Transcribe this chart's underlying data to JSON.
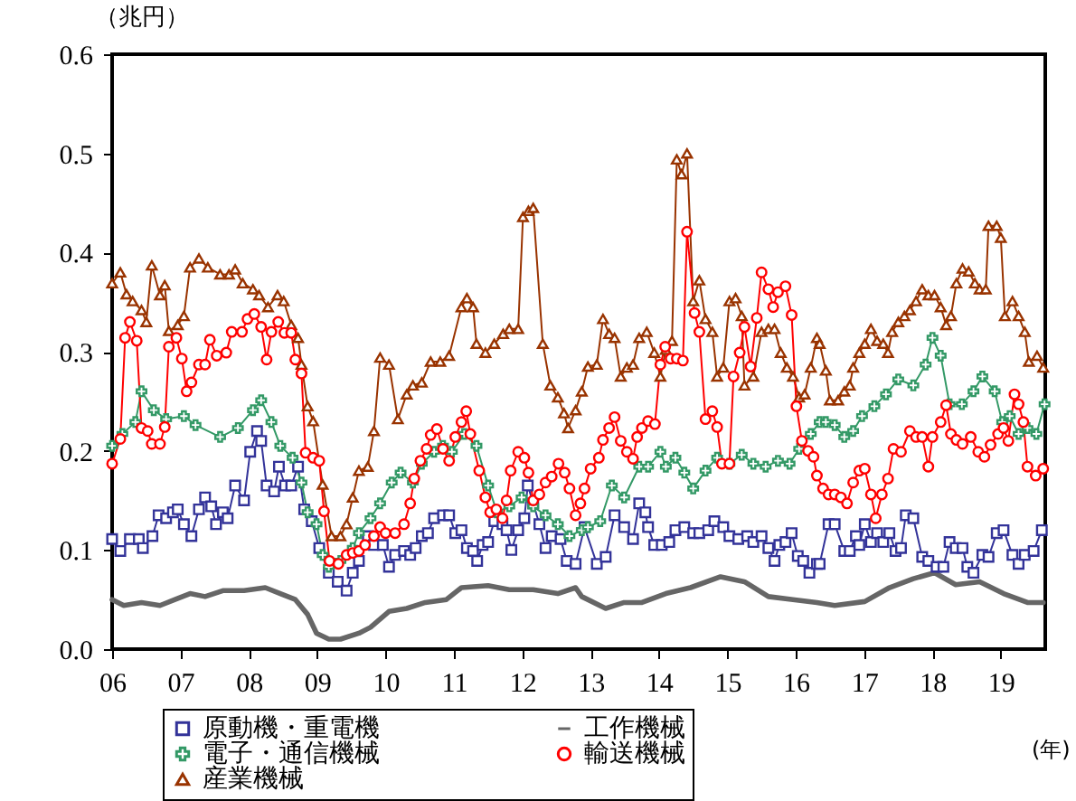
{
  "chart_data": {
    "type": "line",
    "ylabel": "（兆円）",
    "xlabel": "(年)",
    "legend": "bottom",
    "grid": false,
    "xlim": [
      2006,
      2019.65
    ],
    "xticks": [
      {
        "value": 2006,
        "label": "06"
      },
      {
        "value": 2007,
        "label": "07"
      },
      {
        "value": 2008,
        "label": "08"
      },
      {
        "value": 2009,
        "label": "09"
      },
      {
        "value": 2010,
        "label": "10"
      },
      {
        "value": 2011,
        "label": "11"
      },
      {
        "value": 2012,
        "label": "12"
      },
      {
        "value": 2013,
        "label": "13"
      },
      {
        "value": 2014,
        "label": "14"
      },
      {
        "value": 2015,
        "label": "15"
      },
      {
        "value": 2016,
        "label": "16"
      },
      {
        "value": 2017,
        "label": "17"
      },
      {
        "value": 2018,
        "label": "18"
      },
      {
        "value": 2019,
        "label": "19"
      }
    ],
    "ylim": [
      0,
      0.6
    ],
    "yticks": [
      {
        "value": 0,
        "label": "0.0"
      },
      {
        "value": 0.1,
        "label": "0.1"
      },
      {
        "value": 0.2,
        "label": "0.2"
      },
      {
        "value": 0.3,
        "label": "0.3"
      },
      {
        "value": 0.4,
        "label": "0.4"
      },
      {
        "value": 0.5,
        "label": "0.5"
      },
      {
        "value": 0.6,
        "label": "0.6"
      }
    ],
    "series": [
      {
        "name": "原動機・重電機",
        "color": "#333399",
        "marker": "square",
        "x": [
          2006.0,
          2006.12,
          2006.26,
          2006.39,
          2006.45,
          2006.59,
          2006.68,
          2006.79,
          2006.89,
          2006.96,
          2007.05,
          2007.16,
          2007.27,
          2007.36,
          2007.45,
          2007.52,
          2007.62,
          2007.69,
          2007.8,
          2007.93,
          2008.02,
          2008.12,
          2008.18,
          2008.26,
          2008.37,
          2008.44,
          2008.53,
          2008.62,
          2008.72,
          2008.81,
          2008.92,
          2009.03,
          2009.17,
          2009.3,
          2009.43,
          2009.52,
          2009.61,
          2009.74,
          2009.83,
          2009.96,
          2010.05,
          2010.14,
          2010.27,
          2010.36,
          2010.44,
          2010.53,
          2010.62,
          2010.71,
          2010.84,
          2010.93,
          2011.02,
          2011.11,
          2011.19,
          2011.28,
          2011.34,
          2011.42,
          2011.5,
          2011.59,
          2011.71,
          2011.77,
          2011.84,
          2011.94,
          2012.03,
          2012.08,
          2012.16,
          2012.25,
          2012.34,
          2012.43,
          2012.56,
          2012.65,
          2012.78,
          2012.91,
          2013.09,
          2013.22,
          2013.35,
          2013.49,
          2013.62,
          2013.71,
          2013.8,
          2013.84,
          2013.93,
          2014.04,
          2014.15,
          2014.24,
          2014.37,
          2014.5,
          2014.59,
          2014.72,
          2014.81,
          2014.94,
          2015.03,
          2015.16,
          2015.29,
          2015.38,
          2015.5,
          2015.6,
          2015.69,
          2015.76,
          2015.85,
          2015.94,
          2016.03,
          2016.11,
          2016.2,
          2016.31,
          2016.35,
          2016.48,
          2016.57,
          2016.71,
          2016.79,
          2016.88,
          2016.93,
          2017.01,
          2017.1,
          2017.19,
          2017.28,
          2017.37,
          2017.46,
          2017.54,
          2017.61,
          2017.72,
          2017.85,
          2017.94,
          2018.06,
          2018.16,
          2018.25,
          2018.34,
          2018.44,
          2018.51,
          2018.6,
          2018.73,
          2018.82,
          2018.94,
          2019.04,
          2019.17,
          2019.26,
          2019.35,
          2019.48,
          2019.6
        ],
        "values": [
          0.111,
          0.099,
          0.111,
          0.111,
          0.102,
          0.114,
          0.135,
          0.132,
          0.138,
          0.141,
          0.126,
          0.114,
          0.141,
          0.153,
          0.144,
          0.126,
          0.138,
          0.132,
          0.165,
          0.15,
          0.199,
          0.22,
          0.21,
          0.165,
          0.159,
          0.184,
          0.165,
          0.165,
          0.184,
          0.141,
          0.129,
          0.102,
          0.077,
          0.068,
          0.059,
          0.077,
          0.089,
          0.114,
          0.105,
          0.105,
          0.083,
          0.095,
          0.099,
          0.095,
          0.102,
          0.114,
          0.117,
          0.132,
          0.135,
          0.135,
          0.117,
          0.12,
          0.102,
          0.099,
          0.089,
          0.105,
          0.108,
          0.129,
          0.126,
          0.12,
          0.1,
          0.12,
          0.132,
          0.165,
          0.147,
          0.126,
          0.102,
          0.114,
          0.111,
          0.089,
          0.086,
          0.123,
          0.086,
          0.093,
          0.135,
          0.123,
          0.111,
          0.147,
          0.138,
          0.123,
          0.105,
          0.105,
          0.108,
          0.12,
          0.123,
          0.117,
          0.117,
          0.12,
          0.129,
          0.123,
          0.114,
          0.111,
          0.114,
          0.108,
          0.114,
          0.102,
          0.089,
          0.105,
          0.108,
          0.117,
          0.094,
          0.089,
          0.077,
          0.086,
          0.086,
          0.126,
          0.126,
          0.099,
          0.099,
          0.114,
          0.105,
          0.126,
          0.108,
          0.117,
          0.108,
          0.117,
          0.099,
          0.102,
          0.135,
          0.132,
          0.093,
          0.089,
          0.083,
          0.083,
          0.108,
          0.102,
          0.102,
          0.083,
          0.077,
          0.095,
          0.093,
          0.117,
          0.12,
          0.095,
          0.086,
          0.095,
          0.099,
          0.12
        ]
      },
      {
        "name": "電子・通信機械",
        "color": "#339966",
        "marker": "cross",
        "x": [
          2006.0,
          2006.15,
          2006.34,
          2006.43,
          2006.61,
          2006.79,
          2007.05,
          2007.22,
          2007.58,
          2007.84,
          2008.06,
          2008.18,
          2008.33,
          2008.46,
          2008.64,
          2008.77,
          2008.86,
          2008.99,
          2009.08,
          2009.17,
          2009.34,
          2009.52,
          2009.61,
          2009.78,
          2009.92,
          2010.09,
          2010.22,
          2010.4,
          2010.53,
          2010.71,
          2010.84,
          2010.97,
          2011.15,
          2011.33,
          2011.5,
          2011.63,
          2011.81,
          2011.99,
          2012.16,
          2012.34,
          2012.52,
          2012.69,
          2012.87,
          2012.96,
          2013.14,
          2013.31,
          2013.49,
          2013.71,
          2013.84,
          2014.02,
          2014.1,
          2014.24,
          2014.37,
          2014.5,
          2014.68,
          2014.85,
          2015.03,
          2015.21,
          2015.38,
          2015.56,
          2015.74,
          2015.91,
          2016.05,
          2016.22,
          2016.35,
          2016.44,
          2016.57,
          2016.71,
          2016.84,
          2016.97,
          2017.15,
          2017.32,
          2017.5,
          2017.72,
          2017.9,
          2018.0,
          2018.12,
          2018.25,
          2018.43,
          2018.6,
          2018.73,
          2018.91,
          2019.02,
          2019.13,
          2019.26,
          2019.39,
          2019.52,
          2019.64
        ],
        "values": [
          0.205,
          0.217,
          0.229,
          0.26,
          0.241,
          0.232,
          0.235,
          0.226,
          0.214,
          0.223,
          0.241,
          0.251,
          0.229,
          0.205,
          0.193,
          0.168,
          0.138,
          0.126,
          0.095,
          0.083,
          0.089,
          0.102,
          0.117,
          0.132,
          0.147,
          0.168,
          0.178,
          0.168,
          0.187,
          0.199,
          0.205,
          0.199,
          0.217,
          0.205,
          0.165,
          0.138,
          0.144,
          0.153,
          0.144,
          0.135,
          0.126,
          0.114,
          0.12,
          0.123,
          0.129,
          0.165,
          0.153,
          0.184,
          0.184,
          0.199,
          0.184,
          0.193,
          0.178,
          0.162,
          0.18,
          0.193,
          0.187,
          0.196,
          0.187,
          0.184,
          0.19,
          0.187,
          0.202,
          0.217,
          0.229,
          0.229,
          0.226,
          0.214,
          0.22,
          0.235,
          0.245,
          0.257,
          0.272,
          0.266,
          0.287,
          0.314,
          0.296,
          0.247,
          0.247,
          0.26,
          0.275,
          0.26,
          0.229,
          0.235,
          0.217,
          0.223,
          0.217,
          0.247
        ]
      },
      {
        "name": "産業機械",
        "color": "#993300",
        "marker": "triangle",
        "x": [
          2006.0,
          2006.12,
          2006.21,
          2006.3,
          2006.43,
          2006.5,
          2006.58,
          2006.7,
          2006.77,
          2006.83,
          2006.96,
          2007.05,
          2007.14,
          2007.27,
          2007.4,
          2007.58,
          2007.71,
          2007.8,
          2007.91,
          2008.06,
          2008.15,
          2008.28,
          2008.42,
          2008.51,
          2008.62,
          2008.72,
          2008.77,
          2008.86,
          2008.94,
          2009.08,
          2009.21,
          2009.34,
          2009.43,
          2009.52,
          2009.61,
          2009.74,
          2009.83,
          2009.92,
          2010.05,
          2010.18,
          2010.31,
          2010.4,
          2010.53,
          2010.66,
          2010.8,
          2010.93,
          2011.11,
          2011.19,
          2011.28,
          2011.33,
          2011.46,
          2011.59,
          2011.72,
          2011.81,
          2011.94,
          2012.01,
          2012.09,
          2012.16,
          2012.3,
          2012.41,
          2012.52,
          2012.61,
          2012.67,
          2012.78,
          2012.87,
          2012.96,
          2013.09,
          2013.18,
          2013.27,
          2013.35,
          2013.44,
          2013.53,
          2013.62,
          2013.71,
          2013.82,
          2013.93,
          2014.02,
          2014.1,
          2014.19,
          2014.26,
          2014.33,
          2014.41,
          2014.5,
          2014.59,
          2014.68,
          2014.78,
          2014.85,
          2014.94,
          2015.03,
          2015.12,
          2015.21,
          2015.25,
          2015.38,
          2015.5,
          2015.6,
          2015.69,
          2015.78,
          2015.87,
          2015.96,
          2016.05,
          2016.13,
          2016.22,
          2016.31,
          2016.35,
          2016.44,
          2016.5,
          2016.62,
          2016.71,
          2016.79,
          2016.84,
          2016.93,
          2017.01,
          2017.1,
          2017.19,
          2017.28,
          2017.35,
          2017.41,
          2017.5,
          2017.59,
          2017.67,
          2017.76,
          2017.85,
          2017.94,
          2018.03,
          2018.12,
          2018.2,
          2018.27,
          2018.35,
          2018.44,
          2018.53,
          2018.62,
          2018.69,
          2018.78,
          2018.82,
          2018.94,
          2019.0,
          2019.06,
          2019.17,
          2019.26,
          2019.35,
          2019.41,
          2019.53,
          2019.62
        ],
        "values": [
          0.369,
          0.38,
          0.358,
          0.351,
          0.342,
          0.33,
          0.387,
          0.357,
          0.367,
          0.321,
          0.327,
          0.336,
          0.385,
          0.394,
          0.385,
          0.378,
          0.378,
          0.383,
          0.369,
          0.363,
          0.357,
          0.345,
          0.357,
          0.351,
          0.327,
          0.314,
          0.287,
          0.245,
          0.23,
          0.166,
          0.114,
          0.114,
          0.126,
          0.153,
          0.18,
          0.184,
          0.22,
          0.294,
          0.287,
          0.232,
          0.257,
          0.266,
          0.269,
          0.29,
          0.29,
          0.296,
          0.345,
          0.354,
          0.345,
          0.308,
          0.299,
          0.308,
          0.318,
          0.323,
          0.323,
          0.436,
          0.442,
          0.445,
          0.308,
          0.266,
          0.254,
          0.238,
          0.223,
          0.241,
          0.26,
          0.285,
          0.287,
          0.333,
          0.318,
          0.314,
          0.275,
          0.284,
          0.287,
          0.314,
          0.32,
          0.299,
          0.275,
          0.302,
          0.311,
          0.494,
          0.479,
          0.5,
          0.351,
          0.372,
          0.333,
          0.32,
          0.275,
          0.284,
          0.351,
          0.354,
          0.336,
          0.266,
          0.275,
          0.32,
          0.323,
          0.323,
          0.299,
          0.284,
          0.275,
          0.254,
          0.257,
          0.284,
          0.314,
          0.308,
          0.281,
          0.251,
          0.251,
          0.26,
          0.266,
          0.284,
          0.299,
          0.308,
          0.323,
          0.311,
          0.308,
          0.299,
          0.32,
          0.33,
          0.336,
          0.342,
          0.351,
          0.363,
          0.357,
          0.357,
          0.345,
          0.327,
          0.336,
          0.369,
          0.384,
          0.381,
          0.369,
          0.363,
          0.363,
          0.427,
          0.427,
          0.415,
          0.336,
          0.351,
          0.336,
          0.32,
          0.29,
          0.296,
          0.284
        ]
      },
      {
        "name": "工作機械",
        "color": "#666666",
        "marker": "none",
        "x": [
          2006.0,
          2006.17,
          2006.43,
          2006.7,
          2006.92,
          2007.14,
          2007.36,
          2007.62,
          2007.93,
          2008.24,
          2008.46,
          2008.68,
          2008.86,
          2008.99,
          2009.17,
          2009.34,
          2009.61,
          2009.78,
          2010.05,
          2010.31,
          2010.58,
          2010.89,
          2011.11,
          2011.5,
          2011.81,
          2012.16,
          2012.52,
          2012.78,
          2012.87,
          2013.22,
          2013.49,
          2013.75,
          2014.1,
          2014.46,
          2014.9,
          2015.25,
          2015.6,
          2015.96,
          2016.31,
          2016.57,
          2017.01,
          2017.37,
          2017.72,
          2018.03,
          2018.34,
          2018.69,
          2019.04,
          2019.39,
          2019.62
        ],
        "values": [
          0.05,
          0.044,
          0.047,
          0.044,
          0.05,
          0.056,
          0.053,
          0.059,
          0.059,
          0.062,
          0.056,
          0.05,
          0.035,
          0.016,
          0.01,
          0.01,
          0.016,
          0.022,
          0.038,
          0.041,
          0.047,
          0.05,
          0.062,
          0.064,
          0.06,
          0.06,
          0.056,
          0.062,
          0.053,
          0.041,
          0.047,
          0.047,
          0.056,
          0.062,
          0.073,
          0.068,
          0.053,
          0.05,
          0.047,
          0.044,
          0.048,
          0.062,
          0.071,
          0.077,
          0.065,
          0.068,
          0.056,
          0.047,
          0.047
        ]
      },
      {
        "name": "輸送機械",
        "color": "#ff0000",
        "marker": "circle",
        "x": [
          2006.0,
          2006.12,
          2006.19,
          2006.26,
          2006.36,
          2006.43,
          2006.52,
          2006.58,
          2006.7,
          2006.77,
          2006.83,
          2006.94,
          2007.02,
          2007.09,
          2007.16,
          2007.27,
          2007.36,
          2007.43,
          2007.53,
          2007.67,
          2007.75,
          2007.9,
          2007.98,
          2008.08,
          2008.18,
          2008.26,
          2008.33,
          2008.43,
          2008.52,
          2008.62,
          2008.68,
          2008.77,
          2008.83,
          2008.94,
          2009.03,
          2009.1,
          2009.18,
          2009.31,
          2009.43,
          2009.52,
          2009.61,
          2009.7,
          2009.83,
          2009.92,
          2010.0,
          2010.14,
          2010.27,
          2010.36,
          2010.42,
          2010.51,
          2010.6,
          2010.66,
          2010.75,
          2010.84,
          2010.93,
          2011.02,
          2011.11,
          2011.18,
          2011.24,
          2011.37,
          2011.46,
          2011.53,
          2011.62,
          2011.71,
          2011.77,
          2011.83,
          2011.94,
          2012.03,
          2012.09,
          2012.16,
          2012.25,
          2012.34,
          2012.43,
          2012.53,
          2012.62,
          2012.69,
          2012.78,
          2012.85,
          2012.91,
          2013.0,
          2013.12,
          2013.18,
          2013.27,
          2013.35,
          2013.44,
          2013.53,
          2013.62,
          2013.68,
          2013.75,
          2013.84,
          2013.94,
          2014.02,
          2014.09,
          2014.17,
          2014.26,
          2014.35,
          2014.41,
          2014.52,
          2014.59,
          2014.68,
          2014.78,
          2014.85,
          2014.92,
          2015.03,
          2015.09,
          2015.18,
          2015.25,
          2015.34,
          2015.43,
          2015.5,
          2015.6,
          2015.67,
          2015.74,
          2015.85,
          2015.94,
          2016.01,
          2016.09,
          2016.18,
          2016.26,
          2016.31,
          2016.4,
          2016.48,
          2016.57,
          2016.66,
          2016.75,
          2016.84,
          2016.93,
          2017.01,
          2017.1,
          2017.17,
          2017.26,
          2017.35,
          2017.43,
          2017.54,
          2017.67,
          2017.76,
          2017.85,
          2017.94,
          2018.0,
          2018.12,
          2018.2,
          2018.27,
          2018.35,
          2018.44,
          2018.56,
          2018.67,
          2018.76,
          2018.85,
          2018.96,
          2019.04,
          2019.11,
          2019.2,
          2019.26,
          2019.33,
          2019.39,
          2019.51,
          2019.62
        ],
        "values": [
          0.187,
          0.212,
          0.314,
          0.33,
          0.311,
          0.223,
          0.22,
          0.207,
          0.207,
          0.224,
          0.305,
          0.314,
          0.293,
          0.26,
          0.269,
          0.287,
          0.287,
          0.312,
          0.296,
          0.299,
          0.32,
          0.32,
          0.333,
          0.338,
          0.325,
          0.292,
          0.32,
          0.33,
          0.319,
          0.319,
          0.292,
          0.278,
          0.198,
          0.193,
          0.19,
          0.139,
          0.089,
          0.086,
          0.095,
          0.097,
          0.099,
          0.105,
          0.114,
          0.123,
          0.117,
          0.117,
          0.126,
          0.147,
          0.172,
          0.19,
          0.202,
          0.216,
          0.222,
          0.202,
          0.19,
          0.214,
          0.229,
          0.24,
          0.217,
          0.18,
          0.153,
          0.138,
          0.141,
          0.132,
          0.15,
          0.18,
          0.199,
          0.193,
          0.178,
          0.15,
          0.156,
          0.168,
          0.174,
          0.187,
          0.178,
          0.162,
          0.135,
          0.147,
          0.162,
          0.182,
          0.193,
          0.211,
          0.223,
          0.234,
          0.21,
          0.199,
          0.192,
          0.214,
          0.223,
          0.23,
          0.227,
          0.287,
          0.305,
          0.293,
          0.293,
          0.291,
          0.421,
          0.339,
          0.32,
          0.232,
          0.24,
          0.224,
          0.187,
          0.187,
          0.275,
          0.299,
          0.325,
          0.285,
          0.334,
          0.38,
          0.363,
          0.345,
          0.36,
          0.366,
          0.337,
          0.245,
          0.21,
          0.2,
          0.194,
          0.175,
          0.162,
          0.156,
          0.156,
          0.153,
          0.147,
          0.168,
          0.18,
          0.182,
          0.156,
          0.132,
          0.156,
          0.172,
          0.202,
          0.199,
          0.22,
          0.214,
          0.214,
          0.184,
          0.214,
          0.229,
          0.246,
          0.217,
          0.211,
          0.207,
          0.214,
          0.199,
          0.194,
          0.206,
          0.217,
          0.223,
          0.21,
          0.257,
          0.247,
          0.229,
          0.184,
          0.175,
          0.182
        ]
      }
    ]
  }
}
